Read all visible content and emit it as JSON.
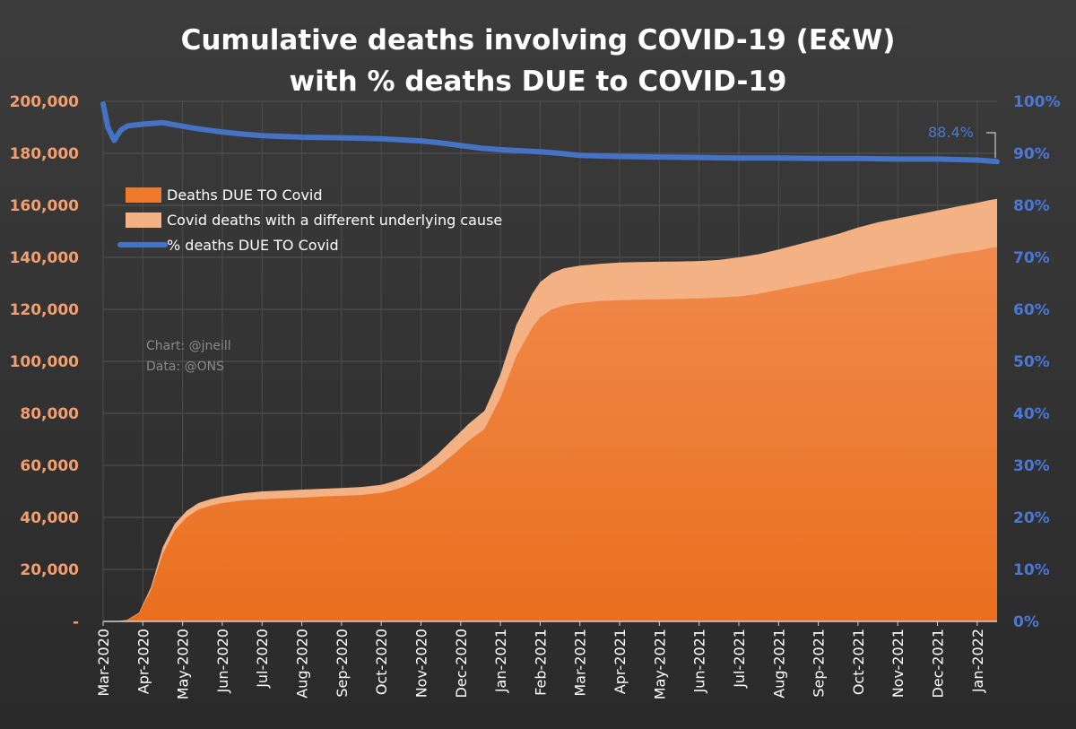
{
  "chart_data": {
    "type": "area",
    "title_line1": "Cumulative deaths involving COVID-19 (E&W)",
    "title_line2": "with % deaths DUE to COVID-19",
    "categories": [
      "Mar-2020",
      "Apr-2020",
      "May-2020",
      "Jun-2020",
      "Jul-2020",
      "Aug-2020",
      "Sep-2020",
      "Oct-2020",
      "Nov-2020",
      "Dec-2020",
      "Jan-2021",
      "Feb-2021",
      "Mar-2021",
      "Apr-2021",
      "May-2021",
      "Jun-2021",
      "Jul-2021",
      "Aug-2021",
      "Sep-2021",
      "Oct-2021",
      "Nov-2021",
      "Dec-2021",
      "Jan-2022"
    ],
    "y_left": {
      "ylim": [
        0,
        200000
      ],
      "tick_values": [
        0,
        20000,
        40000,
        60000,
        80000,
        100000,
        120000,
        140000,
        160000,
        180000,
        200000
      ],
      "tick_labels": [
        "-",
        "20,000",
        "40,000",
        "60,000",
        "80,000",
        "100,000",
        "120,000",
        "140,000",
        "160,000",
        "180,000",
        "200,000"
      ]
    },
    "y_right": {
      "ylim": [
        0,
        100
      ],
      "tick_values": [
        0,
        10,
        20,
        30,
        40,
        50,
        60,
        70,
        80,
        90,
        100
      ],
      "tick_labels": [
        "0%",
        "10%",
        "20%",
        "30%",
        "40%",
        "50%",
        "60%",
        "70%",
        "80%",
        "90%",
        "100%"
      ]
    },
    "series": [
      {
        "name": "Deaths DUE TO Covid",
        "kind": "area",
        "color": "#ee7a2e",
        "x": [
          0,
          0.3,
          0.6,
          0.9,
          1.2,
          1.5,
          1.8,
          2.1,
          2.4,
          2.7,
          3.0,
          3.5,
          4.0,
          4.5,
          5.0,
          5.5,
          6.0,
          6.5,
          7.0,
          7.3,
          7.6,
          8.0,
          8.4,
          8.8,
          9.2,
          9.6,
          10.0,
          10.4,
          10.8,
          11.0,
          11.3,
          11.6,
          12.0,
          12.5,
          13.0,
          13.5,
          14.0,
          14.5,
          15.0,
          15.5,
          16.0,
          16.5,
          17.0,
          17.5,
          18.0,
          18.5,
          19.0,
          19.5,
          20.0,
          20.5,
          21.0,
          21.5,
          22.0,
          22.3,
          22.5
        ],
        "values": [
          0,
          0,
          500,
          3000,
          12000,
          26000,
          35000,
          40000,
          43000,
          44500,
          45500,
          46500,
          47000,
          47300,
          47600,
          48000,
          48300,
          48600,
          49500,
          50500,
          52000,
          55000,
          59000,
          64000,
          69500,
          74000,
          86000,
          102000,
          113000,
          117000,
          120000,
          121500,
          122500,
          123200,
          123500,
          123700,
          123900,
          124000,
          124200,
          124500,
          125000,
          126000,
          127500,
          129000,
          130500,
          132000,
          134000,
          135500,
          137000,
          138500,
          140000,
          141500,
          142500,
          143500,
          144000
        ]
      },
      {
        "name": "Covid deaths with a different underlying cause",
        "kind": "area",
        "color": "#f4b184",
        "x": [
          0,
          0.3,
          0.6,
          0.9,
          1.2,
          1.5,
          1.8,
          2.1,
          2.4,
          2.7,
          3.0,
          3.5,
          4.0,
          4.5,
          5.0,
          5.5,
          6.0,
          6.5,
          7.0,
          7.3,
          7.6,
          8.0,
          8.4,
          8.8,
          9.2,
          9.6,
          10.0,
          10.4,
          10.8,
          11.0,
          11.3,
          11.6,
          12.0,
          12.5,
          13.0,
          13.5,
          14.0,
          14.5,
          15.0,
          15.5,
          16.0,
          16.5,
          17.0,
          17.5,
          18.0,
          18.5,
          19.0,
          19.5,
          20.0,
          20.5,
          21.0,
          21.5,
          22.0,
          22.3,
          22.5
        ],
        "values": [
          0,
          0,
          600,
          3300,
          13000,
          28500,
          37500,
          42500,
          45500,
          47000,
          48000,
          49200,
          50000,
          50300,
          50700,
          51000,
          51300,
          51700,
          52500,
          53800,
          55500,
          59000,
          64000,
          70000,
          76000,
          81000,
          95000,
          114000,
          126000,
          130500,
          134000,
          135800,
          136800,
          137500,
          138000,
          138200,
          138300,
          138400,
          138600,
          139000,
          140000,
          141200,
          143000,
          145000,
          147000,
          149000,
          151500,
          153500,
          155000,
          156500,
          158000,
          159500,
          161000,
          162000,
          162500
        ]
      },
      {
        "name": "% deaths DUE TO Covid",
        "kind": "line",
        "axis": "right",
        "color": "#4472c4",
        "x": [
          0,
          0.12,
          0.28,
          0.45,
          0.62,
          1.0,
          1.5,
          2.0,
          2.5,
          3.0,
          3.5,
          4.0,
          5.0,
          6.0,
          7.0,
          8.0,
          8.5,
          9.0,
          9.5,
          10.0,
          10.5,
          11.0,
          11.5,
          12.0,
          13.0,
          14.0,
          15.0,
          16.0,
          17.0,
          18.0,
          19.0,
          20.0,
          21.0,
          22.0,
          22.5
        ],
        "values": [
          99.5,
          95,
          92.5,
          94.5,
          95.3,
          95.6,
          95.9,
          95.2,
          94.6,
          94.1,
          93.7,
          93.4,
          93.1,
          93.0,
          92.8,
          92.4,
          92.0,
          91.5,
          91.0,
          90.7,
          90.5,
          90.3,
          90.0,
          89.6,
          89.4,
          89.3,
          89.2,
          89.1,
          89.1,
          89.0,
          89.0,
          88.9,
          88.9,
          88.7,
          88.4
        ]
      }
    ],
    "annotation": {
      "text": "88.4%",
      "x": 22.5,
      "value": 88.4
    },
    "credit_line1": "Chart: @jneill",
    "credit_line2": "Data: @ONS",
    "legend_position": "upper-left",
    "grid": true
  }
}
